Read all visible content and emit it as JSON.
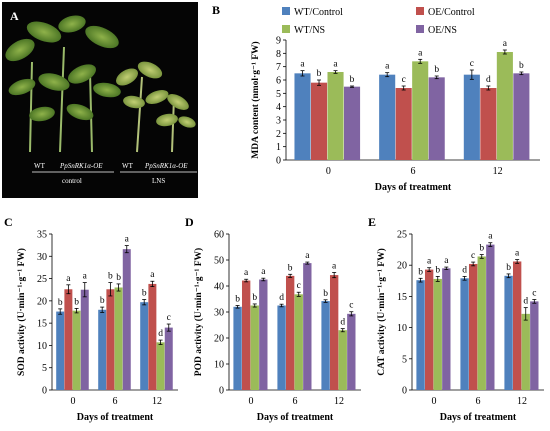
{
  "panelA": {
    "label": "A",
    "labels": {
      "wt1": "WT",
      "oe1": "PpSnRK1α-OE",
      "control": "control",
      "wt2": "WT",
      "oe2": "PpSnRK1α-OE",
      "lns": "LNS"
    }
  },
  "colors": {
    "WT/Control": "#4F81BD",
    "OE/Control": "#C0504D",
    "WT/NS": "#9BBB59",
    "OE/NS": "#8064A2"
  },
  "chart_data": [
    {
      "panel": "B",
      "type": "bar",
      "ylabel": "MDA content (nmol·g⁻¹ FW)",
      "xlabel": "Days of treatment",
      "categories": [
        "0",
        "6",
        "12"
      ],
      "ylim": [
        0,
        9
      ],
      "yticks": [
        0,
        1,
        2,
        3,
        4,
        5,
        6,
        7,
        8,
        9
      ],
      "legend": "top",
      "series": [
        {
          "name": "WT/Control",
          "values": [
            6.5,
            6.4,
            6.4
          ],
          "errors": [
            0.2,
            0.15,
            0.35
          ],
          "letters": [
            "a",
            "a",
            "c"
          ]
        },
        {
          "name": "OE/Control",
          "values": [
            5.8,
            5.4,
            5.4
          ],
          "errors": [
            0.2,
            0.15,
            0.15
          ],
          "letters": [
            "b",
            "c",
            "d"
          ]
        },
        {
          "name": "WT/NS",
          "values": [
            6.6,
            7.4,
            8.1
          ],
          "errors": [
            0.1,
            0.15,
            0.15
          ],
          "letters": [
            "a",
            "a",
            "a"
          ]
        },
        {
          "name": "OE/NS",
          "values": [
            5.5,
            6.2,
            6.5
          ],
          "errors": [
            0.05,
            0.1,
            0.1
          ],
          "letters": [
            "b",
            "b",
            "b"
          ]
        }
      ]
    },
    {
      "panel": "C",
      "type": "bar",
      "ylabel": "SOD activity (U·min⁻¹·g⁻¹ FW)",
      "xlabel": "Days of treatment",
      "categories": [
        "0",
        "6",
        "12"
      ],
      "ylim": [
        0,
        35
      ],
      "yticks": [
        0,
        5,
        10,
        15,
        20,
        25,
        30,
        35
      ],
      "series": [
        {
          "name": "WT/Control",
          "values": [
            17.6,
            18.0,
            19.7
          ],
          "errors": [
            0.6,
            0.6,
            0.6
          ],
          "letters": [
            "b",
            "b",
            "b"
          ]
        },
        {
          "name": "OE/Control",
          "values": [
            22.6,
            22.6,
            23.8
          ],
          "errors": [
            1.0,
            1.5,
            0.6
          ],
          "letters": [
            "a",
            "b",
            "a"
          ]
        },
        {
          "name": "WT/NS",
          "values": [
            17.8,
            23.0,
            10.7
          ],
          "errors": [
            0.5,
            0.8,
            0.5
          ],
          "letters": [
            "b",
            "b",
            "d"
          ]
        },
        {
          "name": "OE/NS",
          "values": [
            22.5,
            31.6,
            14.0
          ],
          "errors": [
            1.6,
            0.8,
            0.8
          ],
          "letters": [
            "a",
            "a",
            "c"
          ]
        }
      ]
    },
    {
      "panel": "D",
      "type": "bar",
      "ylabel": "POD activity (U·min⁻¹·g⁻¹ FW)",
      "xlabel": "Days of treatment",
      "categories": [
        "0",
        "6",
        "12"
      ],
      "ylim": [
        0,
        60
      ],
      "yticks": [
        0,
        10,
        20,
        30,
        40,
        50,
        60
      ],
      "series": [
        {
          "name": "WT/Control",
          "values": [
            32.0,
            32.5,
            34.2
          ],
          "errors": [
            0.5,
            0.5,
            0.5
          ],
          "letters": [
            "b",
            "d",
            "b"
          ]
        },
        {
          "name": "OE/Control",
          "values": [
            42.1,
            43.9,
            44.2
          ],
          "errors": [
            0.5,
            0.6,
            1.0
          ],
          "letters": [
            "a",
            "b",
            "a"
          ]
        },
        {
          "name": "WT/NS",
          "values": [
            32.5,
            36.8,
            23.0
          ],
          "errors": [
            0.6,
            0.8,
            0.6
          ],
          "letters": [
            "b",
            "c",
            "d"
          ]
        },
        {
          "name": "OE/NS",
          "values": [
            42.5,
            48.8,
            29.3
          ],
          "errors": [
            0.5,
            0.4,
            0.8
          ],
          "letters": [
            "a",
            "a",
            "c"
          ]
        }
      ]
    },
    {
      "panel": "E",
      "type": "bar",
      "ylabel": "CAT activity (U·min⁻¹·g⁻¹ FW)",
      "xlabel": "Days of treatment",
      "categories": [
        "0",
        "6",
        "12"
      ],
      "ylim": [
        0,
        25
      ],
      "yticks": [
        0,
        5,
        10,
        15,
        20,
        25
      ],
      "series": [
        {
          "name": "WT/Control",
          "values": [
            17.6,
            17.9,
            18.3
          ],
          "errors": [
            0.3,
            0.3,
            0.3
          ],
          "letters": [
            "b",
            "d",
            "b"
          ]
        },
        {
          "name": "OE/Control",
          "values": [
            19.3,
            20.2,
            20.6
          ],
          "errors": [
            0.3,
            0.3,
            0.3
          ],
          "letters": [
            "a",
            "c",
            "a"
          ]
        },
        {
          "name": "WT/NS",
          "values": [
            17.8,
            21.4,
            12.2
          ],
          "errors": [
            0.4,
            0.3,
            1.0
          ],
          "letters": [
            "b",
            "b",
            "d"
          ]
        },
        {
          "name": "OE/NS",
          "values": [
            19.5,
            23.3,
            14.2
          ],
          "errors": [
            0.2,
            0.3,
            0.3
          ],
          "letters": [
            "a",
            "a",
            "c"
          ]
        }
      ]
    }
  ]
}
